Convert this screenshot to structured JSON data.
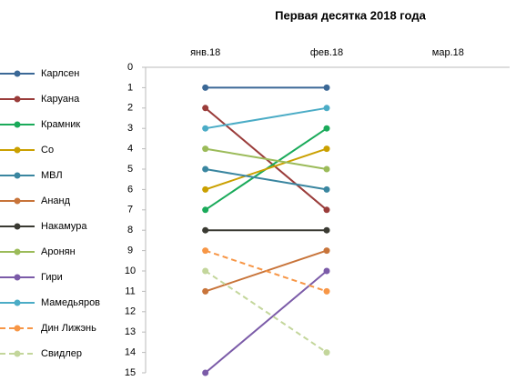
{
  "chart_data": {
    "type": "line",
    "title": "Первая десятка 2018 года",
    "categories": [
      "янв.18",
      "фев.18",
      "мар.18"
    ],
    "ylim": [
      0,
      15
    ],
    "yticks": [
      0,
      1,
      2,
      3,
      4,
      5,
      6,
      7,
      8,
      9,
      10,
      11,
      12,
      13,
      14,
      15
    ],
    "y_reversed": true,
    "legend": "left",
    "series": [
      {
        "name": "Карлсен",
        "color": "#3b6896",
        "values": [
          1,
          1,
          null
        ]
      },
      {
        "name": "Каруана",
        "color": "#9a3c3a",
        "values": [
          2,
          7,
          null
        ]
      },
      {
        "name": "Крамник",
        "color": "#1aaa5a",
        "values": [
          7,
          3,
          null
        ]
      },
      {
        "name": "Со",
        "color": "#caa000",
        "values": [
          6,
          4,
          null
        ]
      },
      {
        "name": "МВЛ",
        "color": "#3a86a0",
        "values": [
          5,
          6,
          null
        ]
      },
      {
        "name": "Ананд",
        "color": "#c8743a",
        "values": [
          11,
          9,
          null
        ]
      },
      {
        "name": "Накамура",
        "color": "#3a3a32",
        "values": [
          8,
          8,
          null
        ]
      },
      {
        "name": "Аронян",
        "color": "#9bbb59",
        "values": [
          4,
          5,
          null
        ]
      },
      {
        "name": "Гири",
        "color": "#7b5ba8",
        "values": [
          15,
          10,
          null
        ]
      },
      {
        "name": "Мамедьяров",
        "color": "#4bacc6",
        "values": [
          3,
          2,
          null
        ]
      },
      {
        "name": "Дин Лижэнь",
        "color": "#f79646",
        "dashed": true,
        "values": [
          9,
          11,
          null
        ]
      },
      {
        "name": "Свидлер",
        "color": "#c3d69b",
        "dashed": true,
        "values": [
          10,
          14,
          null
        ]
      }
    ]
  }
}
